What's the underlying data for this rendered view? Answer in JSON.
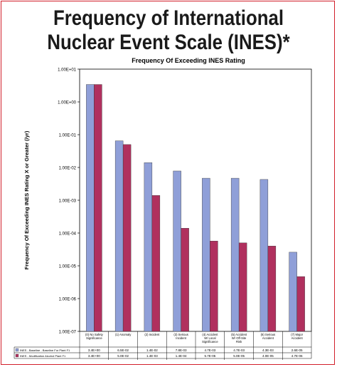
{
  "title_line1": "Frequency of International",
  "title_line2": "Nuclear Event Scale (INES)*",
  "chart_data": {
    "type": "bar",
    "title": "Frequency Of Exceeding INES Rating",
    "ylabel": "Frequency Of Exceeding INES Rating X or Greater (/yr)",
    "xlabel": "",
    "yscale": "log",
    "ylim": [
      1e-07,
      10
    ],
    "yticks": [
      "1.00E-07",
      "1.00E-06",
      "1.00E-05",
      "1.00E-04",
      "1.00E-03",
      "1.00E-02",
      "1.00E-01",
      "1.00E+00",
      "1.00E+01"
    ],
    "categories": [
      "(0) No Safety Significance",
      "(1) Anomaly",
      "(2) Incident",
      "(3) Serious Incident",
      "(4) Accident W/ Local Significance",
      "(5) Accident W/ Off-Site Risk",
      "(6) Serious Accident",
      "(7) Major Accident"
    ],
    "series": [
      {
        "name": "INES - Baseline",
        "table_label": "INES - Baseline - Baseline For Plant F1",
        "color": "#8f9fd8",
        "values": [
          3.4,
          0.065,
          0.014,
          0.0078,
          0.0047,
          0.0047,
          0.0043,
          2.6e-05
        ],
        "labels": [
          "3.4E+00",
          "6.5E-02",
          "1.4E-02",
          "7.8E-03",
          "4.7E-03",
          "4.7E-03",
          "4.3E-03",
          "2.6E-05"
        ]
      },
      {
        "name": "INES - Modification",
        "table_label": "INES - Modification Alcohol Plant F1",
        "color": "#b0305e",
        "values": [
          3.4,
          0.05,
          0.0014,
          0.00014,
          5.7e-05,
          5e-05,
          4e-05,
          4.7e-06
        ],
        "labels": [
          "3.4E+00",
          "5.0E-02",
          "1.4E-03",
          "1.4E-04",
          "5.7E-05",
          "5.0E-05",
          "4.0E-05",
          "4.7E-06"
        ]
      }
    ],
    "grid": false,
    "legend": "table-below"
  }
}
